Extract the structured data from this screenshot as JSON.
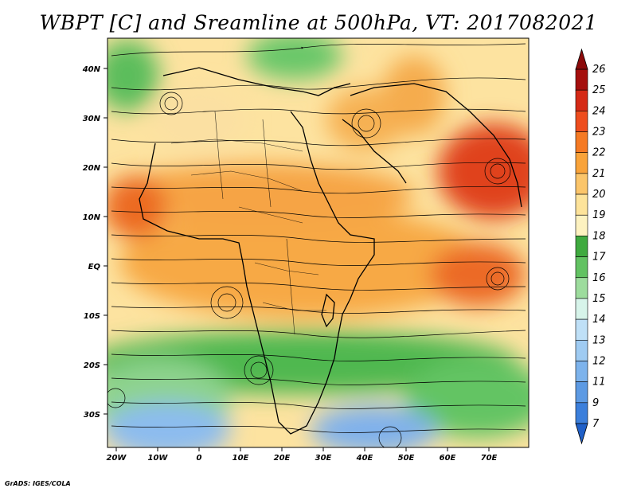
{
  "title": "WBPT [C] and Sreamline at 500hPa, VT: 2017082021",
  "footer": "GrADS: IGES/COLA",
  "lat_labels": [
    "40N",
    "30N",
    "20N",
    "10N",
    "EQ",
    "10S",
    "20S",
    "30S"
  ],
  "lon_labels": [
    "20W",
    "10W",
    "0",
    "10E",
    "20E",
    "30E",
    "40E",
    "50E",
    "60E",
    "70E"
  ],
  "colorbar": {
    "labels": [
      "26",
      "25",
      "24",
      "23",
      "22",
      "21",
      "20",
      "19",
      "18",
      "17",
      "16",
      "15",
      "14",
      "13",
      "12",
      "11",
      "9",
      "7"
    ],
    "colors": [
      "#a50f0d",
      "#d52a16",
      "#ee4d1e",
      "#f57a24",
      "#f9a33a",
      "#fbc56a",
      "#fde39a",
      "#fdf2c0",
      "#3faa3f",
      "#62c262",
      "#9ddc9d",
      "#d7f4ea",
      "#bfe0f7",
      "#9fcbf2",
      "#7db3ec",
      "#5d9ae3",
      "#3c7fdb"
    ],
    "top_arrow_color": "#8b0a0a",
    "bottom_arrow_color": "#2060c8"
  },
  "legend_colors": {
    "warm_dark": "#e9531f",
    "warm": "#f39a3c",
    "warm_light": "#fbcf80",
    "pale": "#fde7a8",
    "green": "#49b449",
    "green_light": "#98d898",
    "blue": "#8ec0ee",
    "blue_dark": "#5c96e0"
  }
}
